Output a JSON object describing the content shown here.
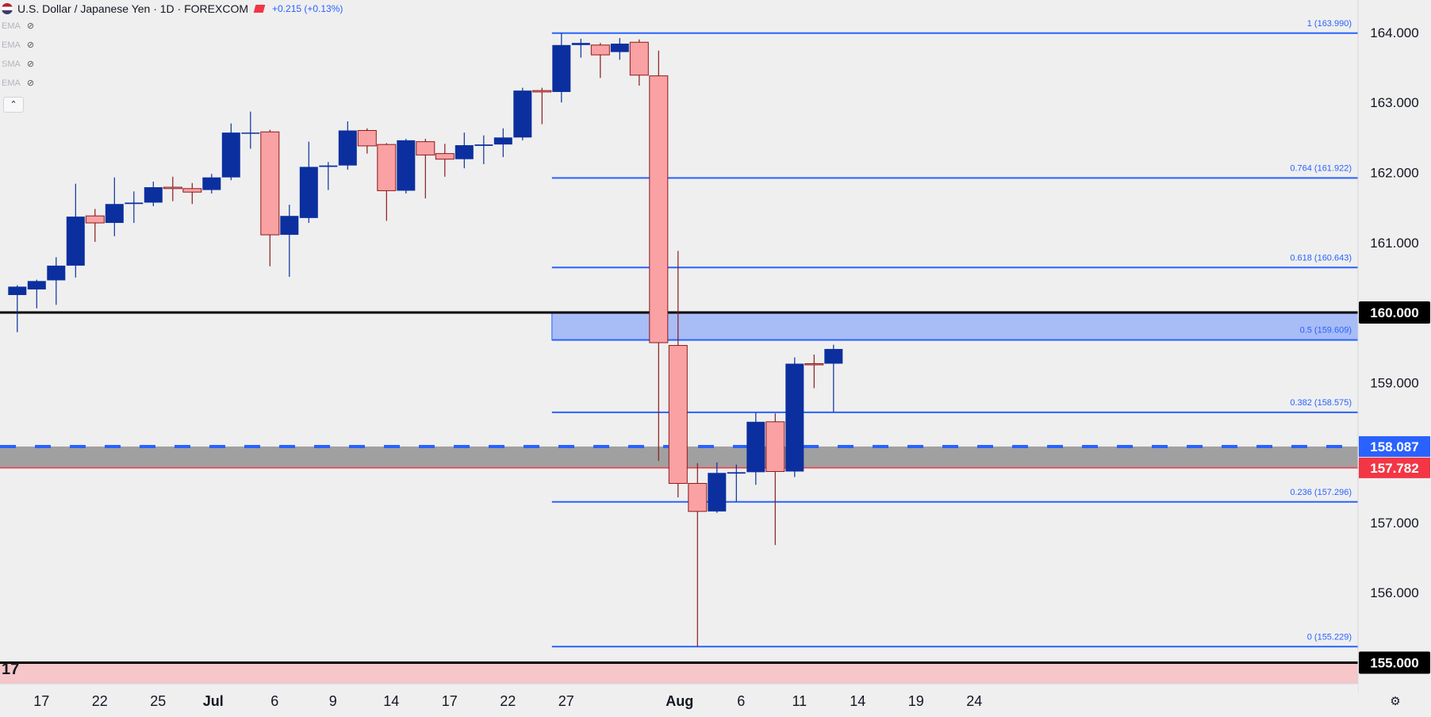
{
  "header": {
    "title": "U.S. Dollar / Japanese Yen · 1D · FOREXCOM",
    "change": "+0.215 (+0.13%)"
  },
  "indicators": [
    {
      "label": "EMA"
    },
    {
      "label": "EMA"
    },
    {
      "label": "SMA"
    },
    {
      "label": "EMA"
    }
  ],
  "colors": {
    "up": "#0b2f9e",
    "down_fill": "#faa1a4",
    "down_border": "#8b1a1a",
    "fib_line": "#2962ff",
    "support_band": "#a0a0a0",
    "resistance_zone": "#a8bcf6",
    "price_blue": "#2962ff",
    "price_red": "#f23645"
  },
  "chart_data": {
    "type": "candlestick",
    "symbol": "USDJPY",
    "ylim": [
      154.7,
      164.35
    ],
    "y_ticks": [
      {
        "value": 164.0,
        "label": "164.000"
      },
      {
        "value": 163.0,
        "label": "163.000"
      },
      {
        "value": 162.0,
        "label": "162.000"
      },
      {
        "value": 161.0,
        "label": "161.000"
      },
      {
        "value": 159.0,
        "label": "159.000"
      },
      {
        "value": 157.0,
        "label": "157.000"
      },
      {
        "value": 156.0,
        "label": "156.000"
      }
    ],
    "x_ticks": [
      {
        "index": 1,
        "label": "17"
      },
      {
        "index": 4,
        "label": "22"
      },
      {
        "index": 7,
        "label": "25"
      },
      {
        "index": 10,
        "label": "Jul"
      },
      {
        "index": 13,
        "label": "6"
      },
      {
        "index": 16,
        "label": "9"
      },
      {
        "index": 19,
        "label": "14"
      },
      {
        "index": 22,
        "label": "17"
      },
      {
        "index": 25,
        "label": "22"
      },
      {
        "index": 28,
        "label": "27"
      },
      {
        "index": 31,
        "label": ""
      },
      {
        "index": 34,
        "label": "Aug"
      },
      {
        "index": 37,
        "label": "6"
      },
      {
        "index": 40,
        "label": "11"
      },
      {
        "index": 43,
        "label": "14"
      },
      {
        "index": 46,
        "label": "19"
      },
      {
        "index": 49,
        "label": "24"
      }
    ],
    "candles": [
      {
        "o": 160.25,
        "h": 160.39,
        "l": 159.72,
        "c": 160.37
      },
      {
        "o": 160.33,
        "h": 160.47,
        "l": 160.06,
        "c": 160.45
      },
      {
        "o": 160.46,
        "h": 160.79,
        "l": 160.11,
        "c": 160.67
      },
      {
        "o": 160.67,
        "h": 161.84,
        "l": 160.5,
        "c": 161.37
      },
      {
        "o": 161.38,
        "h": 161.48,
        "l": 161.01,
        "c": 161.28
      },
      {
        "o": 161.28,
        "h": 161.93,
        "l": 161.09,
        "c": 161.55
      },
      {
        "o": 161.55,
        "h": 161.73,
        "l": 161.28,
        "c": 161.57
      },
      {
        "o": 161.57,
        "h": 161.87,
        "l": 161.52,
        "c": 161.79
      },
      {
        "o": 161.79,
        "h": 161.94,
        "l": 161.59,
        "c": 161.77
      },
      {
        "o": 161.77,
        "h": 161.85,
        "l": 161.55,
        "c": 161.72
      },
      {
        "o": 161.75,
        "h": 161.98,
        "l": 161.7,
        "c": 161.93
      },
      {
        "o": 161.93,
        "h": 162.7,
        "l": 161.89,
        "c": 162.57
      },
      {
        "o": 162.57,
        "h": 162.87,
        "l": 162.34,
        "c": 162.57
      },
      {
        "o": 162.58,
        "h": 162.61,
        "l": 160.66,
        "c": 161.11
      },
      {
        "o": 161.11,
        "h": 161.54,
        "l": 160.51,
        "c": 161.38
      },
      {
        "o": 161.35,
        "h": 162.44,
        "l": 161.28,
        "c": 162.08
      },
      {
        "o": 162.08,
        "h": 162.15,
        "l": 161.75,
        "c": 162.1
      },
      {
        "o": 162.1,
        "h": 162.73,
        "l": 162.04,
        "c": 162.6
      },
      {
        "o": 162.6,
        "h": 162.63,
        "l": 162.27,
        "c": 162.38
      },
      {
        "o": 162.4,
        "h": 162.42,
        "l": 161.31,
        "c": 161.74
      },
      {
        "o": 161.74,
        "h": 162.48,
        "l": 161.7,
        "c": 162.46
      },
      {
        "o": 162.44,
        "h": 162.48,
        "l": 161.63,
        "c": 162.25
      },
      {
        "o": 162.27,
        "h": 162.41,
        "l": 161.94,
        "c": 162.19
      },
      {
        "o": 162.19,
        "h": 162.57,
        "l": 162.06,
        "c": 162.39
      },
      {
        "o": 162.38,
        "h": 162.53,
        "l": 162.12,
        "c": 162.4
      },
      {
        "o": 162.4,
        "h": 162.63,
        "l": 162.22,
        "c": 162.5
      },
      {
        "o": 162.5,
        "h": 163.21,
        "l": 162.46,
        "c": 163.17
      },
      {
        "o": 163.17,
        "h": 163.21,
        "l": 162.69,
        "c": 163.15
      },
      {
        "o": 163.15,
        "h": 163.99,
        "l": 163.0,
        "c": 163.82
      },
      {
        "o": 163.82,
        "h": 163.91,
        "l": 163.64,
        "c": 163.85
      },
      {
        "o": 163.82,
        "h": 163.85,
        "l": 163.35,
        "c": 163.68
      },
      {
        "o": 163.72,
        "h": 163.92,
        "l": 163.61,
        "c": 163.84
      },
      {
        "o": 163.86,
        "h": 163.9,
        "l": 163.24,
        "c": 163.39
      },
      {
        "o": 163.38,
        "h": 163.74,
        "l": 157.88,
        "c": 159.57
      },
      {
        "o": 159.53,
        "h": 160.88,
        "l": 157.36,
        "c": 157.56
      },
      {
        "o": 157.56,
        "h": 157.85,
        "l": 155.23,
        "c": 157.16
      },
      {
        "o": 157.16,
        "h": 157.86,
        "l": 157.14,
        "c": 157.71
      },
      {
        "o": 157.7,
        "h": 157.83,
        "l": 157.3,
        "c": 157.72
      },
      {
        "o": 157.72,
        "h": 158.57,
        "l": 157.54,
        "c": 158.44
      },
      {
        "o": 158.44,
        "h": 158.56,
        "l": 156.68,
        "c": 157.73
      },
      {
        "o": 157.73,
        "h": 159.36,
        "l": 157.65,
        "c": 159.27
      },
      {
        "o": 159.27,
        "h": 159.4,
        "l": 158.92,
        "c": 159.26
      },
      {
        "o": 159.27,
        "h": 159.54,
        "l": 158.58,
        "c": 159.48
      }
    ],
    "fib_retracement": [
      {
        "ratio": "1",
        "value": 163.99,
        "label": "1 (163.990)"
      },
      {
        "ratio": "0.764",
        "value": 161.922,
        "label": "0.764 (161.922)"
      },
      {
        "ratio": "0.618",
        "value": 160.643,
        "label": "0.618 (160.643)"
      },
      {
        "ratio": "0.5",
        "value": 159.609,
        "label": "0.5 (159.609)"
      },
      {
        "ratio": "0.382",
        "value": 158.575,
        "label": "0.382 (158.575)"
      },
      {
        "ratio": "0.236",
        "value": 157.296,
        "label": "0.236 (157.296)"
      },
      {
        "ratio": "0",
        "value": 155.229,
        "label": "0 (155.229)"
      }
    ],
    "fib_start_index": 28,
    "horizontal_levels": [
      {
        "value": 160.0,
        "label": "160.000",
        "style": "solid-black"
      },
      {
        "value": 155.0,
        "label": "155.000",
        "style": "solid-black"
      }
    ],
    "resistance_zone": {
      "from": 159.609,
      "to": 160.0,
      "start_index": 28
    },
    "support_band": {
      "from": 157.782,
      "to": 158.087
    },
    "price_tags": [
      {
        "value": 158.087,
        "label": "158.087",
        "color": "blue"
      },
      {
        "value": 157.782,
        "label": "157.782",
        "color": "red"
      }
    ]
  }
}
